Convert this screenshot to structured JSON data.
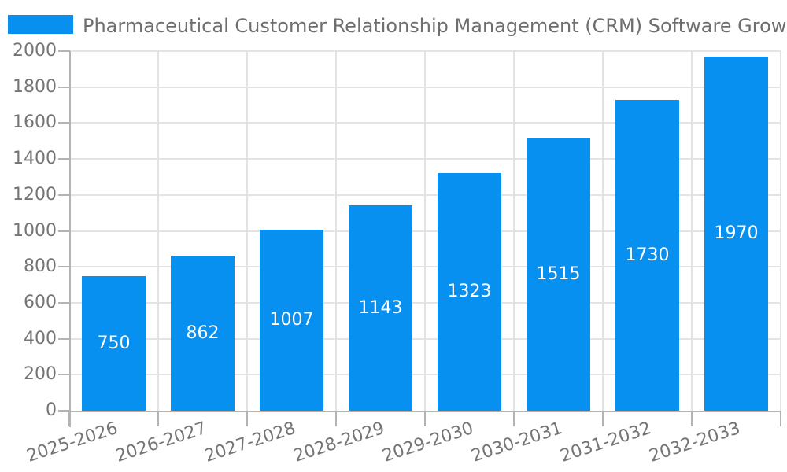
{
  "chart_data": {
    "type": "bar",
    "title": "Pharmaceutical Customer Relationship Management (CRM) Software Growth (%)",
    "categories": [
      "2025-2026",
      "2026-2027",
      "2027-2028",
      "2028-2029",
      "2029-2030",
      "2030-2031",
      "2031-2032",
      "2032-2033"
    ],
    "values": [
      750,
      862,
      1007,
      1143,
      1323,
      1515,
      1730,
      1970
    ],
    "xlabel": "",
    "ylabel": "",
    "ylim": [
      0,
      2000
    ],
    "yticks": [
      0,
      200,
      400,
      600,
      800,
      1000,
      1200,
      1400,
      1600,
      1800,
      2000
    ],
    "grid": true,
    "legend_position": "top-left",
    "value_labels_position": "inside-center",
    "x_tick_rotation_deg": -18,
    "colors": {
      "bar": "#0890f0",
      "title_text": "#6e6e6e",
      "tick_text": "#757575",
      "gridline": "#e3e3e3",
      "axis_line": "#b3b3b3",
      "value_label_text": "#ffffff"
    }
  }
}
